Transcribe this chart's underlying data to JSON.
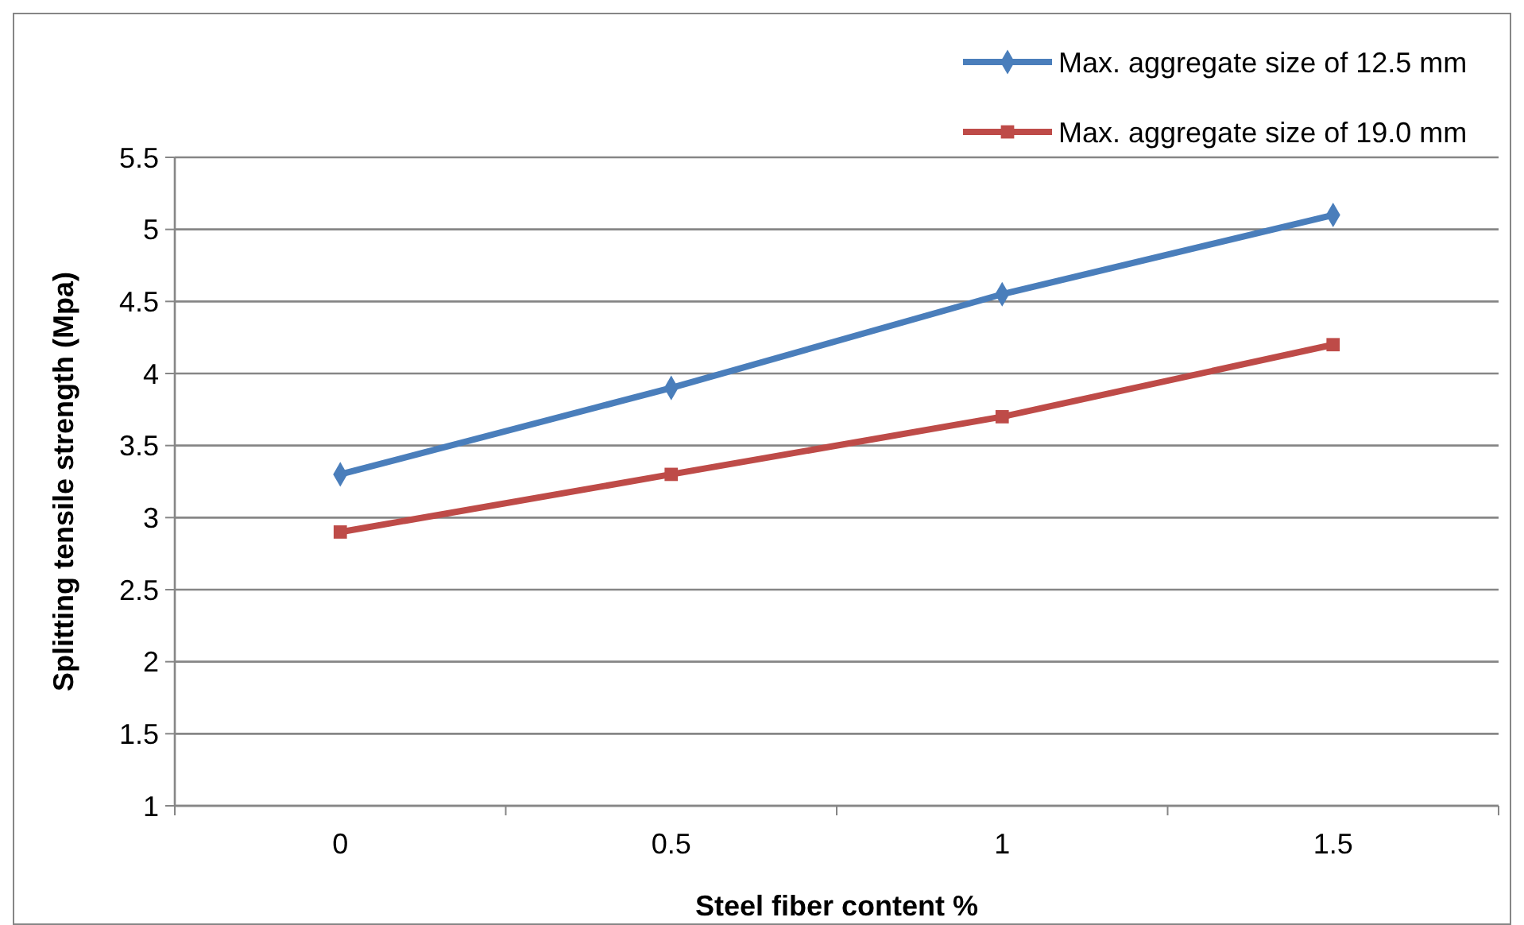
{
  "chart_data": {
    "type": "line",
    "xlabel": "Steel fiber content %",
    "ylabel": "Splitting tensile strength (Mpa)",
    "categories": [
      "0",
      "0.5",
      "1",
      "1.5"
    ],
    "series": [
      {
        "name": "Max. aggregate size of 12.5 mm",
        "color": "#4a7ebb",
        "marker": "diamond",
        "values": [
          3.3,
          3.9,
          4.55,
          5.1
        ]
      },
      {
        "name": "Max. aggregate size of 19.0 mm",
        "color": "#be4b48",
        "marker": "square",
        "values": [
          2.9,
          3.3,
          3.7,
          4.2
        ]
      }
    ],
    "ylim": [
      1,
      5.5
    ],
    "yticks": [
      1,
      1.5,
      2,
      2.5,
      3,
      3.5,
      4,
      4.5,
      5,
      5.5
    ],
    "grid": "y",
    "legend": "top right"
  }
}
